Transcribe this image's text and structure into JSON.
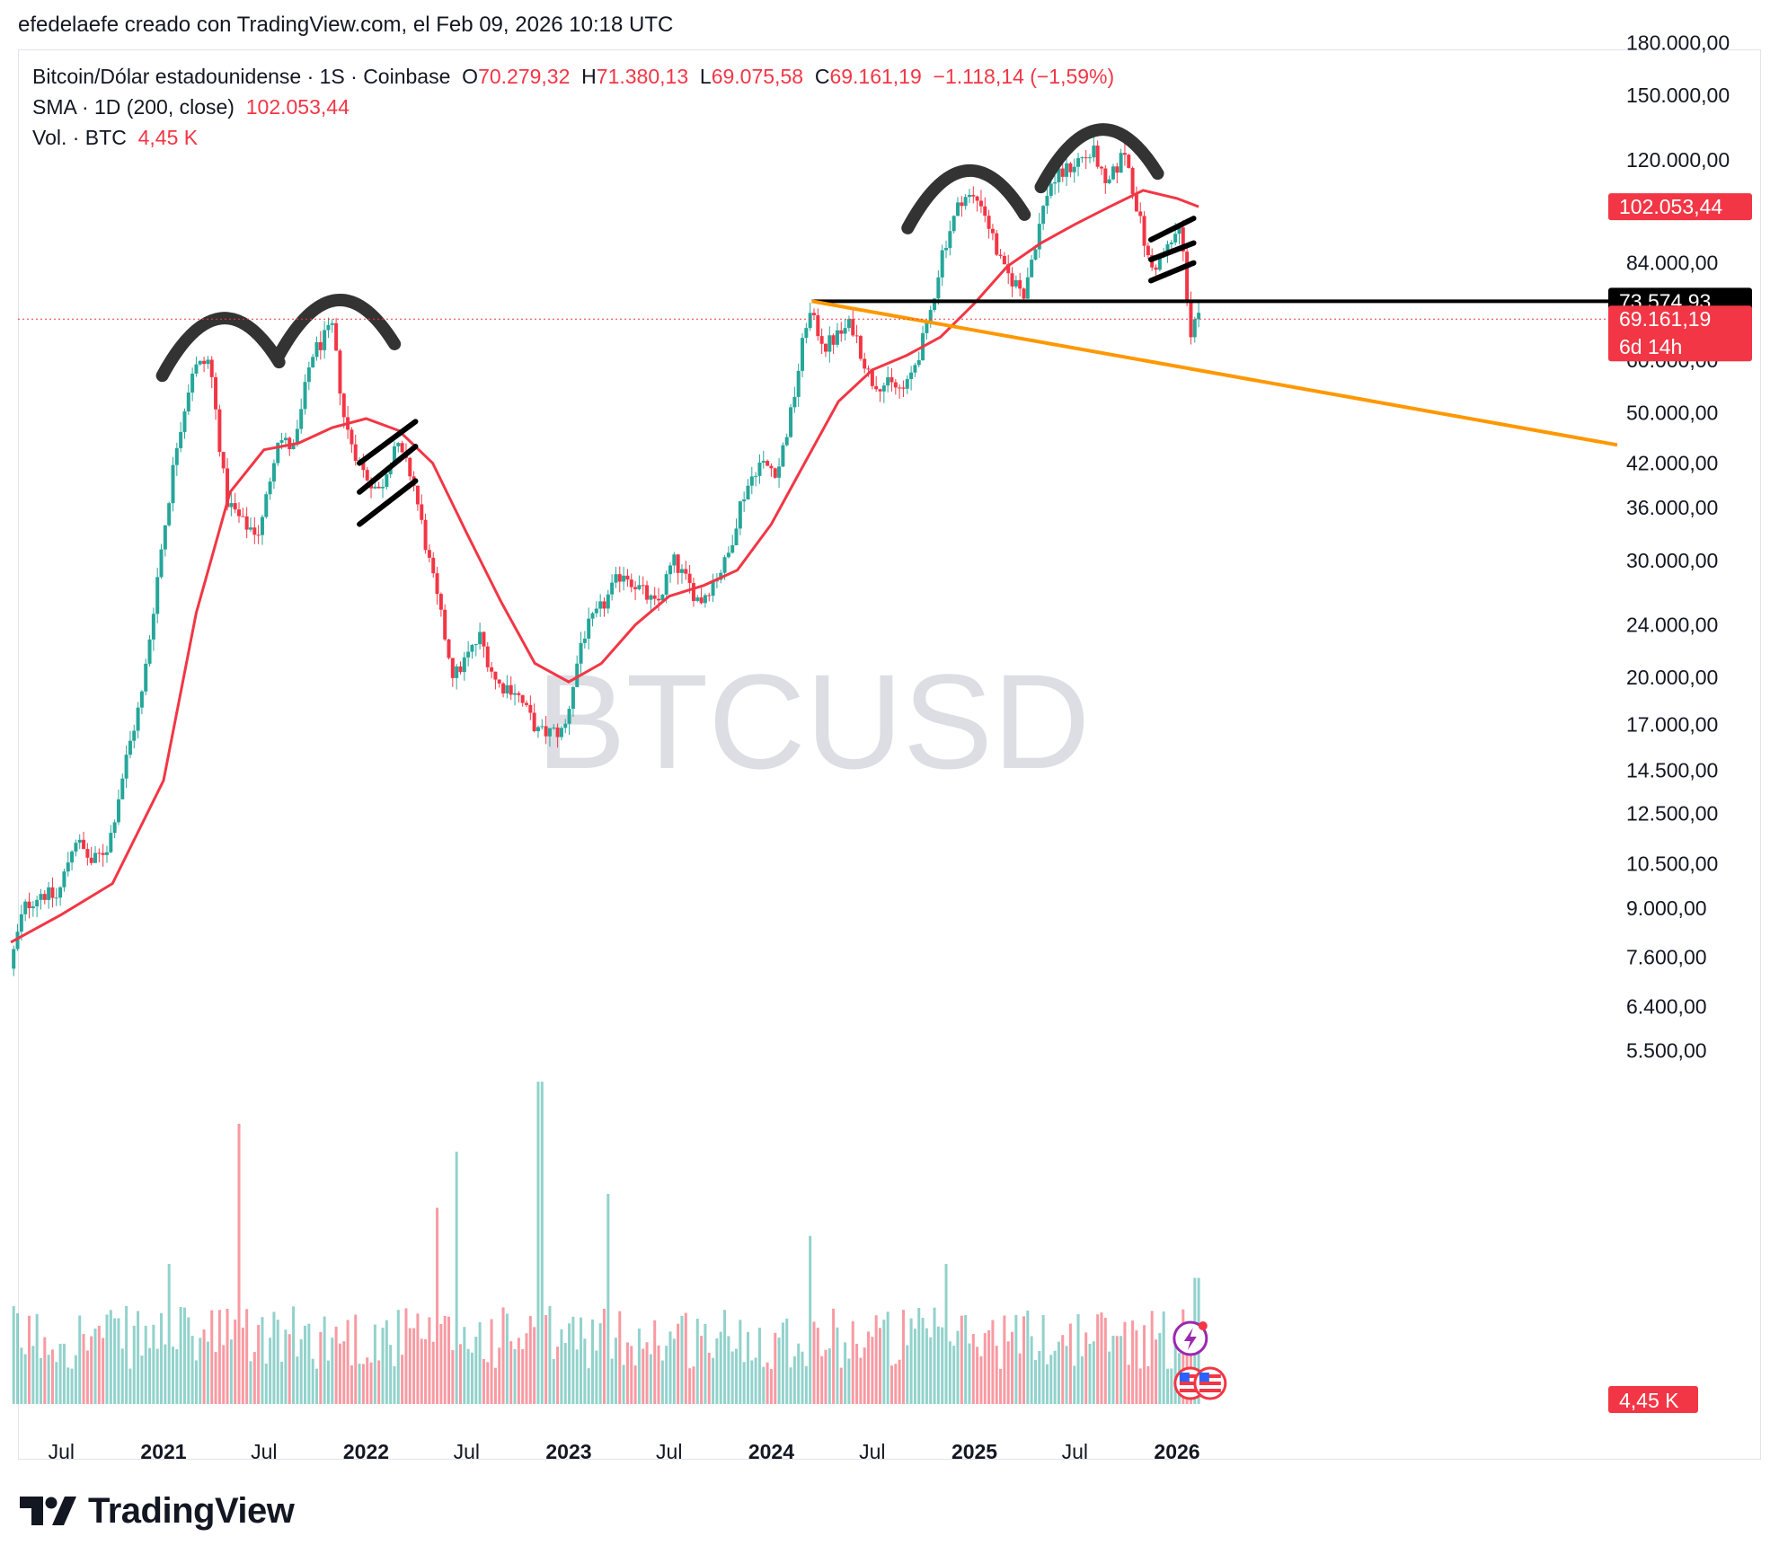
{
  "header": "efedelaefe creado con TradingView.com, el Feb 09, 2026 10:18 UTC",
  "legend": {
    "title": "Bitcoin/Dólar estadounidense · 1S · Coinbase",
    "o_label": "O",
    "o": "70.279,32",
    "h_label": "H",
    "h": "71.380,13",
    "l_label": "L",
    "l": "69.075,58",
    "c_label": "C",
    "c": "69.161,19",
    "change": "−1.118,14 (−1,59%)",
    "sma_label": "SMA · 1D (200, close)",
    "sma_value": "102.053,44",
    "vol_label": "Vol. · BTC",
    "vol_value": "4,45 K"
  },
  "watermark": "BTCUSD",
  "brand": "TradingView",
  "colors": {
    "up": "#26a69a",
    "down": "#f23645",
    "sma": "#f23645",
    "support": "#000000",
    "trendline": "#ff9800",
    "annotation": "#333333"
  },
  "chart_data": {
    "type": "candlestick",
    "symbol": "BTCUSD",
    "interval": "1S",
    "scale": "log",
    "ylim": [
      5000,
      190000
    ],
    "y_ticks": [
      "180.000,00",
      "150.000,00",
      "120.000,00",
      "84.000,00",
      "60.000,00",
      "50.000,00",
      "42.000,00",
      "36.000,00",
      "30.000,00",
      "24.000,00",
      "20.000,00",
      "17.000,00",
      "14.500,00",
      "12.500,00",
      "10.500,00",
      "9.000,00",
      "7.600,00",
      "6.400,00",
      "5.500,00"
    ],
    "x_ticks": [
      {
        "label": "Jul",
        "bold": false,
        "date": "2020-07-01"
      },
      {
        "label": "2021",
        "bold": true,
        "date": "2021-01-01"
      },
      {
        "label": "Jul",
        "bold": false,
        "date": "2021-07-01"
      },
      {
        "label": "2022",
        "bold": true,
        "date": "2022-01-01"
      },
      {
        "label": "Jul",
        "bold": false,
        "date": "2022-07-01"
      },
      {
        "label": "2023",
        "bold": true,
        "date": "2023-01-01"
      },
      {
        "label": "Jul",
        "bold": false,
        "date": "2023-07-01"
      },
      {
        "label": "2024",
        "bold": true,
        "date": "2024-01-01"
      },
      {
        "label": "Jul",
        "bold": false,
        "date": "2024-07-01"
      },
      {
        "label": "2025",
        "bold": true,
        "date": "2025-01-01"
      },
      {
        "label": "Jul",
        "bold": false,
        "date": "2025-07-01"
      },
      {
        "label": "2026",
        "bold": true,
        "date": "2026-01-01"
      }
    ],
    "price_path": [
      [
        "2020-04-01",
        7000
      ],
      [
        "2020-05-01",
        9000
      ],
      [
        "2020-06-01",
        9500
      ],
      [
        "2020-07-01",
        9300
      ],
      [
        "2020-08-01",
        11500
      ],
      [
        "2020-09-01",
        10500
      ],
      [
        "2020-10-01",
        11200
      ],
      [
        "2020-11-01",
        15000
      ],
      [
        "2020-12-01",
        19000
      ],
      [
        "2021-01-01",
        30000
      ],
      [
        "2021-02-01",
        45000
      ],
      [
        "2021-03-01",
        58000
      ],
      [
        "2021-04-01",
        60000
      ],
      [
        "2021-05-01",
        37000
      ],
      [
        "2021-06-01",
        34000
      ],
      [
        "2021-07-01",
        33000
      ],
      [
        "2021-08-01",
        46000
      ],
      [
        "2021-09-01",
        44000
      ],
      [
        "2021-10-01",
        61000
      ],
      [
        "2021-11-08",
        67000
      ],
      [
        "2021-12-01",
        48000
      ],
      [
        "2022-01-01",
        41000
      ],
      [
        "2022-02-01",
        38000
      ],
      [
        "2022-03-01",
        45000
      ],
      [
        "2022-04-01",
        40000
      ],
      [
        "2022-05-01",
        30000
      ],
      [
        "2022-06-15",
        20000
      ],
      [
        "2022-08-01",
        23000
      ],
      [
        "2022-09-01",
        19500
      ],
      [
        "2022-10-01",
        19300
      ],
      [
        "2022-11-15",
        16500
      ],
      [
        "2022-12-31",
        16600
      ],
      [
        "2023-02-01",
        23000
      ],
      [
        "2023-03-15",
        26000
      ],
      [
        "2023-04-15",
        29000
      ],
      [
        "2023-06-15",
        25500
      ],
      [
        "2023-07-15",
        30000
      ],
      [
        "2023-09-01",
        26000
      ],
      [
        "2023-10-20",
        30000
      ],
      [
        "2023-11-15",
        37000
      ],
      [
        "2023-12-15",
        42000
      ],
      [
        "2024-01-20",
        41000
      ],
      [
        "2024-02-15",
        51000
      ],
      [
        "2024-03-14",
        71000
      ],
      [
        "2024-04-15",
        63000
      ],
      [
        "2024-06-01",
        68000
      ],
      [
        "2024-07-05",
        56000
      ],
      [
        "2024-08-05",
        55000
      ],
      [
        "2024-09-06",
        54000
      ],
      [
        "2024-10-15",
        67000
      ],
      [
        "2024-11-12",
        88000
      ],
      [
        "2024-12-17",
        106000
      ],
      [
        "2025-01-20",
        104000
      ],
      [
        "2025-02-28",
        82000
      ],
      [
        "2025-04-07",
        76000
      ],
      [
        "2025-05-22",
        110000
      ],
      [
        "2025-07-14",
        120000
      ],
      [
        "2025-08-14",
        123000
      ],
      [
        "2025-09-01",
        108000
      ],
      [
        "2025-10-06",
        124000
      ],
      [
        "2025-11-21",
        82000
      ],
      [
        "2025-12-15",
        86000
      ],
      [
        "2026-01-14",
        95000
      ],
      [
        "2026-02-05",
        62000
      ],
      [
        "2026-02-09",
        69161
      ]
    ],
    "sma_path": [
      [
        "2020-04-01",
        8000
      ],
      [
        "2020-07-01",
        8800
      ],
      [
        "2020-10-01",
        9800
      ],
      [
        "2021-01-01",
        14000
      ],
      [
        "2021-03-01",
        25000
      ],
      [
        "2021-05-01",
        38000
      ],
      [
        "2021-07-01",
        44000
      ],
      [
        "2021-09-01",
        45000
      ],
      [
        "2021-11-01",
        47500
      ],
      [
        "2022-01-01",
        49000
      ],
      [
        "2022-03-01",
        47000
      ],
      [
        "2022-05-01",
        42000
      ],
      [
        "2022-07-01",
        33000
      ],
      [
        "2022-09-01",
        26000
      ],
      [
        "2022-11-01",
        21000
      ],
      [
        "2023-01-01",
        19700
      ],
      [
        "2023-03-01",
        21000
      ],
      [
        "2023-05-01",
        24000
      ],
      [
        "2023-07-01",
        26500
      ],
      [
        "2023-09-01",
        27500
      ],
      [
        "2023-11-01",
        29000
      ],
      [
        "2024-01-01",
        34000
      ],
      [
        "2024-03-01",
        42000
      ],
      [
        "2024-05-01",
        52000
      ],
      [
        "2024-07-01",
        58000
      ],
      [
        "2024-09-01",
        61000
      ],
      [
        "2024-11-01",
        65000
      ],
      [
        "2025-01-01",
        73000
      ],
      [
        "2025-03-01",
        83000
      ],
      [
        "2025-05-01",
        90000
      ],
      [
        "2025-07-01",
        96000
      ],
      [
        "2025-09-01",
        102000
      ],
      [
        "2025-11-01",
        108000
      ],
      [
        "2026-01-01",
        105000
      ],
      [
        "2026-02-09",
        102053
      ]
    ],
    "volume_scale_max": 250,
    "volume_peaks": [
      [
        "2021-01-10",
        100
      ],
      [
        "2021-05-15",
        200
      ],
      [
        "2022-05-10",
        140
      ],
      [
        "2022-06-15",
        180
      ],
      [
        "2022-11-10",
        230
      ],
      [
        "2023-03-12",
        150
      ],
      [
        "2024-03-10",
        120
      ],
      [
        "2024-11-12",
        100
      ],
      [
        "2026-02-05",
        90
      ]
    ],
    "last_price": {
      "value": 69161.19,
      "label": "69.161,19",
      "countdown": "6d 14h"
    },
    "sma_value": {
      "value": 102053.44,
      "label": "102.053,44"
    },
    "support_line": {
      "value": 73574.93,
      "label": "73.574,93",
      "start": "2024-03-14"
    },
    "trendline": {
      "start": [
        "2024-03-14",
        73574
      ],
      "end": [
        "2026-02-16",
        57800
      ]
    },
    "volume_last": {
      "label": "4,45 K"
    },
    "head_and_shoulders_arcs": [
      {
        "peak_date": "2021-04-14",
        "peak": 64800
      },
      {
        "peak_date": "2021-11-08",
        "peak": 69000
      },
      {
        "peak_date": "2024-12-17",
        "peak": 108000
      },
      {
        "peak_date": "2025-08-14",
        "peak": 124500
      }
    ],
    "channels": [
      {
        "start": "2021-12-20",
        "end": "2022-03-31",
        "lines": [
          [
            42000,
            48500
          ],
          [
            38000,
            44500
          ],
          [
            34000,
            39500
          ]
        ]
      },
      {
        "start": "2025-11-15",
        "end": "2026-01-31",
        "lines": [
          [
            91000,
            98000
          ],
          [
            85000,
            90000
          ],
          [
            79000,
            84000
          ]
        ]
      }
    ]
  }
}
